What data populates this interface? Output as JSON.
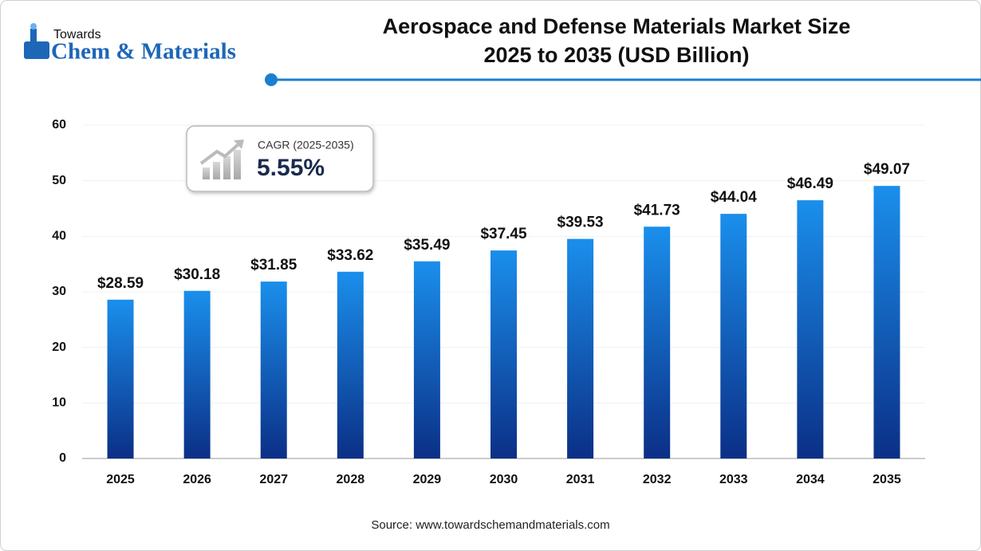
{
  "chart_data": {
    "type": "bar",
    "title": "Aerospace and Defense Materials Market Size",
    "subtitle": "2025 to 2035 (USD Billion)",
    "logo": {
      "top": "Towards",
      "main": "Chem & Materials"
    },
    "cagr": {
      "label": "CAGR (2025-2035)",
      "value": "5.55%"
    },
    "source": "Source: www.towardschemandmaterials.com",
    "categories": [
      "2025",
      "2026",
      "2027",
      "2028",
      "2029",
      "2030",
      "2031",
      "2032",
      "2033",
      "2034",
      "2035"
    ],
    "values": [
      28.59,
      30.18,
      31.85,
      33.62,
      35.49,
      37.45,
      39.53,
      41.73,
      44.04,
      46.49,
      49.07
    ],
    "value_labels": [
      "$28.59",
      "$30.18",
      "$31.85",
      "$33.62",
      "$35.49",
      "$37.45",
      "$39.53",
      "$41.73",
      "$44.04",
      "$46.49",
      "$49.07"
    ],
    "color": "#1a8fec",
    "ylim": [
      0,
      60
    ],
    "yticks": [
      0,
      10,
      20,
      30,
      40,
      50,
      60
    ],
    "grid": true
  }
}
